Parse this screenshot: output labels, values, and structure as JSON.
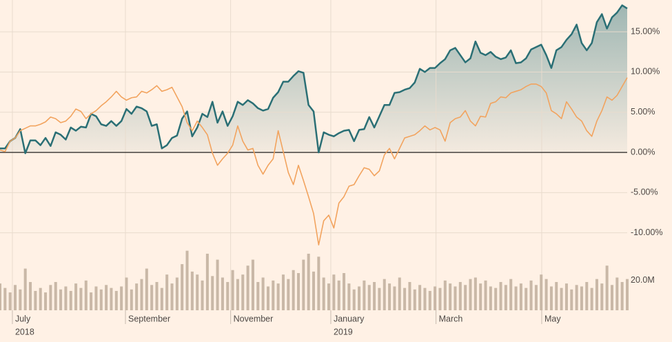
{
  "chart_data": [
    {
      "type": "line",
      "xlim": [
        0,
        124
      ],
      "ylim": [
        -12,
        19
      ],
      "yticks": [
        {
          "value": 15,
          "label": "15.00%"
        },
        {
          "value": 10,
          "label": "10.00%"
        },
        {
          "value": 5,
          "label": "5.00%"
        },
        {
          "value": 0,
          "label": "0.00%"
        },
        {
          "value": -5,
          "label": "-5.00%"
        },
        {
          "value": -10,
          "label": "-10.00%"
        }
      ],
      "grid": true,
      "series": [
        {
          "color": "#2a6f75",
          "area": true,
          "values": [
            0.5,
            0.5,
            1.4,
            1.8,
            2.9,
            -0.1,
            1.5,
            1.5,
            0.9,
            1.8,
            0.8,
            2.5,
            2.2,
            1.6,
            3.1,
            2.7,
            3.2,
            3.1,
            4.8,
            4.5,
            3.5,
            3.3,
            3.9,
            3.3,
            3.9,
            5.4,
            4.8,
            5.7,
            5.5,
            5.1,
            3.3,
            3.5,
            0.5,
            0.9,
            1.8,
            2.1,
            4.2,
            5.1,
            2.0,
            3.1,
            4.8,
            4.4,
            6.3,
            3.7,
            5.1,
            3.3,
            4.5,
            6.3,
            5.9,
            6.5,
            6.1,
            5.5,
            5.2,
            5.4,
            6.8,
            7.5,
            8.8,
            8.8,
            9.5,
            10.1,
            9.9,
            5.9,
            5.1,
            0.0,
            2.5,
            2.2,
            2.0,
            2.4,
            2.7,
            2.8,
            1.4,
            2.8,
            2.9,
            4.4,
            3.1,
            4.5,
            5.9,
            5.9,
            7.4,
            7.5,
            7.8,
            8.0,
            8.7,
            10.4,
            10.0,
            10.5,
            10.5,
            11.1,
            11.6,
            12.7,
            13.0,
            12.1,
            11.2,
            11.7,
            13.8,
            12.4,
            12.1,
            12.5,
            11.9,
            11.6,
            11.8,
            12.7,
            11.1,
            11.2,
            11.7,
            12.8,
            13.1,
            13.4,
            12.1,
            10.5,
            12.7,
            13.1,
            14.0,
            14.7,
            15.9,
            13.6,
            12.7,
            13.6,
            16.2,
            17.2,
            15.4,
            16.8,
            17.4,
            18.3,
            17.9
          ]
        },
        {
          "color": "#f2a35e",
          "values": [
            0.3,
            0.1,
            1.4,
            1.8,
            2.7,
            3.0,
            3.3,
            3.3,
            3.5,
            3.8,
            4.4,
            4.2,
            3.7,
            3.9,
            4.5,
            5.4,
            5.1,
            4.2,
            4.8,
            5.2,
            5.8,
            6.3,
            6.9,
            7.6,
            6.9,
            6.5,
            6.8,
            6.9,
            7.6,
            7.4,
            7.8,
            8.3,
            7.6,
            7.8,
            8.1,
            6.9,
            5.7,
            3.7,
            2.7,
            3.9,
            3.1,
            2.2,
            -0.1,
            -1.6,
            -0.8,
            -0.1,
            0.9,
            3.3,
            1.4,
            0.3,
            0.5,
            -1.6,
            -2.7,
            -1.6,
            -0.8,
            2.7,
            0.1,
            -2.5,
            -4.0,
            -1.6,
            -3.5,
            -5.5,
            -7.6,
            -11.5,
            -8.5,
            -7.8,
            -9.4,
            -6.3,
            -5.5,
            -4.2,
            -4.0,
            -2.9,
            -1.9,
            -2.1,
            -2.9,
            -2.3,
            -0.3,
            0.5,
            -0.8,
            0.5,
            1.8,
            2.0,
            2.2,
            2.7,
            3.3,
            2.8,
            3.1,
            2.8,
            1.4,
            3.7,
            4.2,
            4.4,
            5.2,
            3.9,
            3.3,
            4.5,
            4.4,
            6.1,
            6.3,
            6.9,
            6.8,
            7.4,
            7.6,
            7.8,
            8.2,
            8.5,
            8.5,
            8.2,
            7.4,
            5.2,
            4.8,
            4.2,
            6.3,
            5.4,
            4.4,
            3.9,
            2.7,
            2.0,
            3.9,
            5.2,
            6.9,
            6.5,
            7.1,
            8.2,
            9.3
          ]
        }
      ]
    },
    {
      "type": "bar",
      "xlim": [
        0,
        124
      ],
      "ylim": [
        0,
        44
      ],
      "yticks": [
        {
          "value": 20,
          "label": "20.0M"
        }
      ],
      "color": "#c9b8a7",
      "values": [
        18,
        15,
        12,
        17,
        14,
        28,
        19,
        13,
        15,
        12,
        17,
        19,
        14,
        16,
        13,
        18,
        15,
        20,
        12,
        16,
        14,
        17,
        15,
        13,
        16,
        22,
        14,
        18,
        21,
        28,
        17,
        19,
        15,
        24,
        18,
        22,
        31,
        40,
        26,
        24,
        20,
        38,
        23,
        34,
        22,
        19,
        27,
        21,
        24,
        30,
        34,
        19,
        22,
        16,
        20,
        18,
        24,
        21,
        27,
        25,
        34,
        38,
        26,
        36,
        22,
        18,
        24,
        20,
        25,
        18,
        14,
        16,
        20,
        17,
        19,
        15,
        21,
        18,
        16,
        22,
        15,
        19,
        14,
        17,
        15,
        13,
        16,
        15,
        20,
        18,
        16,
        19,
        17,
        21,
        22,
        18,
        20,
        16,
        15,
        19,
        17,
        21,
        16,
        18,
        15,
        20,
        17,
        24,
        21,
        16,
        19,
        15,
        18,
        14,
        17,
        16,
        19,
        15,
        21,
        18,
        30,
        17,
        22,
        19,
        21
      ],
      "xticks": [
        {
          "value": 2.45,
          "label": "July"
        },
        {
          "value": 24.8,
          "label": "September"
        },
        {
          "value": 45.6,
          "label": "November"
        },
        {
          "value": 65.4,
          "label": "January"
        },
        {
          "value": 86.2,
          "label": "March"
        },
        {
          "value": 107.1,
          "label": "May"
        }
      ],
      "xtick_years": [
        {
          "value": 2.45,
          "label": "2018"
        },
        {
          "value": 65.4,
          "label": "2019"
        }
      ]
    }
  ]
}
